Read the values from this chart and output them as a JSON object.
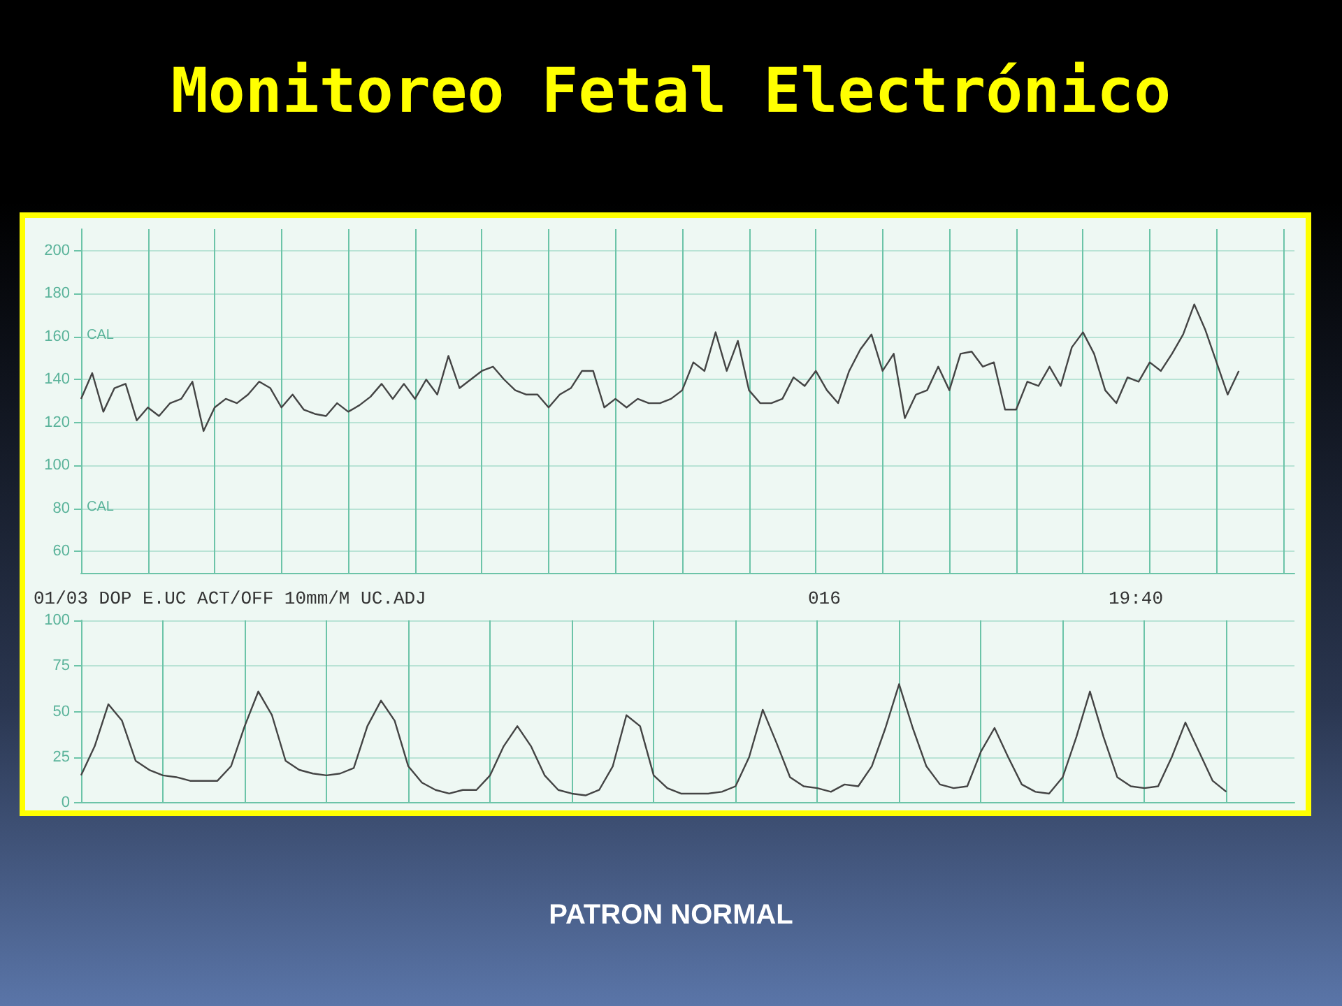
{
  "chart_data": [
    {
      "type": "line",
      "title": "Monitoreo Fetal Electrónico",
      "categories": [
        null,
        null,
        null,
        null,
        null,
        null,
        null,
        null,
        null,
        null,
        null,
        null,
        null,
        null,
        null,
        null,
        null,
        null,
        null,
        null,
        null,
        null,
        null,
        null,
        null,
        null,
        null,
        null,
        null,
        null,
        null,
        null,
        null,
        null,
        null,
        null,
        null,
        null,
        null,
        null,
        null,
        null,
        null,
        null,
        null,
        null,
        null,
        null,
        null,
        null,
        null,
        null,
        null,
        null,
        null,
        null,
        null,
        null,
        null,
        null,
        null,
        null,
        null,
        null,
        null,
        null,
        null,
        null,
        null,
        null,
        null,
        null,
        null,
        null,
        null,
        null,
        null,
        null,
        null,
        null,
        null,
        null,
        null,
        null,
        null,
        null,
        null,
        null,
        null,
        null,
        null,
        null,
        null,
        null,
        null,
        null,
        null,
        null,
        null,
        null,
        null,
        null,
        null,
        null,
        null,
        null,
        null,
        null,
        null,
        null
      ],
      "series": [
        {
          "color": "#444444",
          "values": [
            131,
            143,
            125,
            136,
            138,
            121,
            127,
            123,
            129,
            131,
            139,
            116,
            127,
            131,
            129,
            133,
            139,
            136,
            127,
            133,
            126,
            124,
            123,
            129,
            125,
            128,
            132,
            138,
            131,
            138,
            131,
            140,
            133,
            151,
            136,
            140,
            144,
            146,
            140,
            135,
            133,
            133,
            127,
            133,
            136,
            144,
            144,
            127,
            131,
            127,
            131,
            129,
            129,
            131,
            135,
            148,
            144,
            162,
            144,
            158,
            135,
            129,
            129,
            131,
            141,
            137,
            144,
            135,
            129,
            144,
            154,
            161,
            144,
            152,
            122,
            133,
            135,
            146,
            135,
            152,
            153,
            146,
            148,
            126,
            126,
            139,
            137,
            146,
            137,
            155,
            162,
            152,
            135,
            129,
            141,
            139,
            148,
            144,
            152,
            161,
            175,
            163,
            148,
            133,
            144,
            null,
            null,
            null,
            null,
            null
          ]
        }
      ],
      "ylim": [
        50,
        210
      ],
      "yticks": [
        60,
        80,
        100,
        120,
        140,
        160,
        180,
        200
      ],
      "grid": true,
      "tick_labels": "y",
      "annotations": [
        "CAL",
        "CAL"
      ]
    },
    {
      "type": "line",
      "categories": [
        null,
        null,
        null,
        null,
        null,
        null,
        null,
        null,
        null,
        null,
        null,
        null,
        null,
        null,
        null,
        null,
        null,
        null,
        null,
        null,
        null,
        null,
        null,
        null,
        null,
        null,
        null,
        null,
        null,
        null,
        null,
        null,
        null,
        null,
        null,
        null,
        null,
        null,
        null,
        null,
        null,
        null,
        null,
        null,
        null,
        null,
        null,
        null,
        null,
        null,
        null,
        null,
        null,
        null,
        null,
        null,
        null,
        null,
        null,
        null,
        null,
        null,
        null,
        null,
        null,
        null,
        null,
        null,
        null,
        null,
        null,
        null,
        null,
        null,
        null,
        null,
        null,
        null,
        null,
        null,
        null,
        null,
        null,
        null,
        null,
        null,
        null,
        null,
        null,
        null
      ],
      "series": [
        {
          "color": "#444444",
          "values": [
            15,
            31,
            54,
            45,
            23,
            18,
            15,
            14,
            12,
            12,
            12,
            20,
            42,
            61,
            48,
            23,
            18,
            16,
            15,
            16,
            19,
            42,
            56,
            45,
            20,
            11,
            7,
            5,
            7,
            7,
            15,
            31,
            42,
            31,
            15,
            7,
            5,
            4,
            7,
            20,
            48,
            42,
            15,
            8,
            5,
            5,
            5,
            6,
            9,
            25,
            51,
            33,
            14,
            9,
            8,
            6,
            10,
            9,
            20,
            41,
            65,
            41,
            20,
            10,
            8,
            9,
            28,
            41,
            25,
            10,
            6,
            5,
            14,
            36,
            61,
            36,
            14,
            9,
            8,
            9,
            25,
            44,
            28,
            12,
            6,
            null,
            null,
            null,
            null,
            null
          ]
        }
      ],
      "ylim": [
        0,
        100
      ],
      "yticks": [
        0,
        25,
        50,
        75,
        100
      ],
      "grid": true,
      "tick_labels": "y",
      "annotations": [
        "01/03 DOP E.UC ACT/OFF 10mm/M UC.ADJ",
        "016",
        "19:40",
        "PATRON NORMAL"
      ]
    }
  ]
}
